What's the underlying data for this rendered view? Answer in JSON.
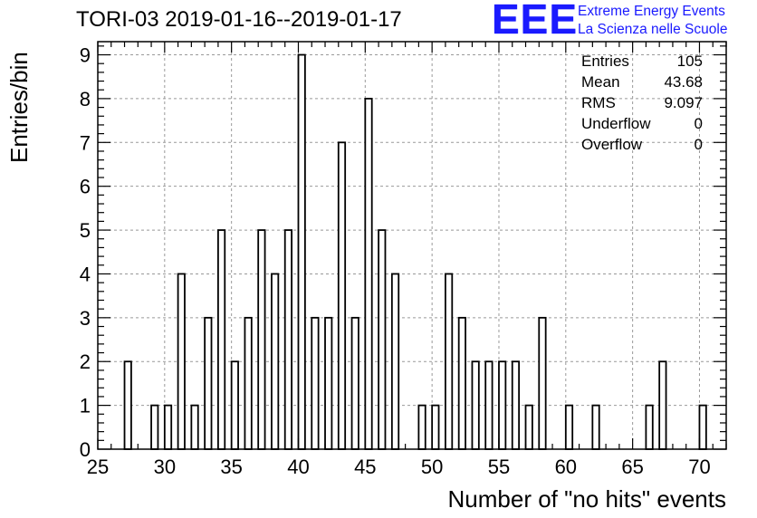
{
  "title": "TORI-03 2019-01-16--2019-01-17",
  "logo": {
    "mark": "EEE",
    "line1": "Extreme Energy Events",
    "line2": "La Scienza nelle Scuole",
    "color": "#1a1aff"
  },
  "stats": [
    {
      "label": "Entries",
      "value": "105"
    },
    {
      "label": "Mean",
      "value": "43.68"
    },
    {
      "label": "RMS",
      "value": "9.097"
    },
    {
      "label": "Underflow",
      "value": "0"
    },
    {
      "label": "Overflow",
      "value": "0"
    }
  ],
  "chart_data": {
    "type": "bar",
    "title": "TORI-03 2019-01-16--2019-01-17",
    "xlabel": "Number of \"no hits\" events",
    "ylabel": "Entries/bin",
    "xlim": [
      25,
      72
    ],
    "ylim": [
      0,
      9.3
    ],
    "bin_width": 1,
    "bar_width_fraction": 0.5,
    "x_ticks": [
      25,
      30,
      35,
      40,
      45,
      50,
      55,
      60,
      65,
      70
    ],
    "y_ticks": [
      0,
      1,
      2,
      3,
      4,
      5,
      6,
      7,
      8,
      9
    ],
    "grid": true,
    "bars": [
      {
        "x": 27,
        "value": 2
      },
      {
        "x": 29,
        "value": 1
      },
      {
        "x": 30,
        "value": 1
      },
      {
        "x": 31,
        "value": 4
      },
      {
        "x": 32,
        "value": 1
      },
      {
        "x": 33,
        "value": 3
      },
      {
        "x": 34,
        "value": 5
      },
      {
        "x": 35,
        "value": 2
      },
      {
        "x": 36,
        "value": 3
      },
      {
        "x": 37,
        "value": 5
      },
      {
        "x": 38,
        "value": 4
      },
      {
        "x": 39,
        "value": 5
      },
      {
        "x": 40,
        "value": 9
      },
      {
        "x": 41,
        "value": 3
      },
      {
        "x": 42,
        "value": 3
      },
      {
        "x": 43,
        "value": 7
      },
      {
        "x": 44,
        "value": 3
      },
      {
        "x": 45,
        "value": 8
      },
      {
        "x": 46,
        "value": 5
      },
      {
        "x": 47,
        "value": 4
      },
      {
        "x": 49,
        "value": 1
      },
      {
        "x": 50,
        "value": 1
      },
      {
        "x": 51,
        "value": 4
      },
      {
        "x": 52,
        "value": 3
      },
      {
        "x": 53,
        "value": 2
      },
      {
        "x": 54,
        "value": 2
      },
      {
        "x": 55,
        "value": 2
      },
      {
        "x": 56,
        "value": 2
      },
      {
        "x": 57,
        "value": 1
      },
      {
        "x": 58,
        "value": 3
      },
      {
        "x": 60,
        "value": 1
      },
      {
        "x": 62,
        "value": 1
      },
      {
        "x": 66,
        "value": 1
      },
      {
        "x": 67,
        "value": 2
      },
      {
        "x": 70,
        "value": 1
      }
    ]
  }
}
